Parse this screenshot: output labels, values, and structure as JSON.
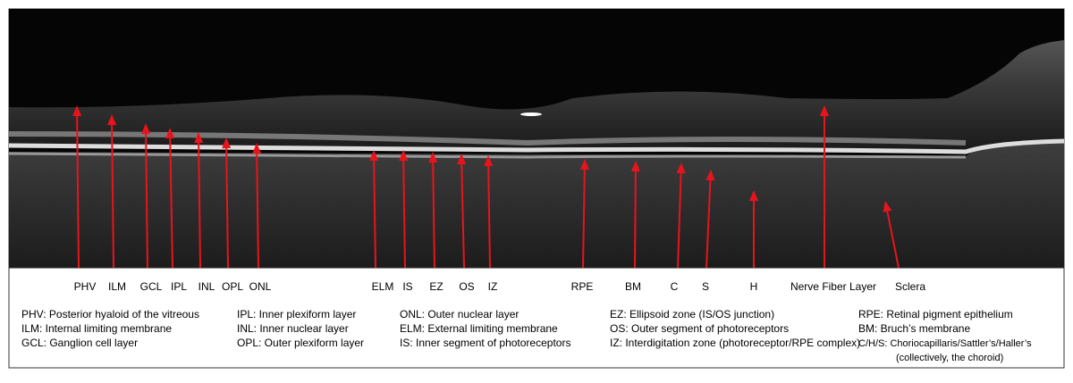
{
  "labels": [
    "PHV",
    "ILM",
    "GCL",
    "IPL",
    "INL",
    "OPL",
    "ONL",
    "ELM",
    "IS",
    "EZ",
    "OS",
    "IZ",
    "RPE",
    "BM",
    "C",
    "S",
    "H",
    "Nerve Fiber Layer",
    "Sclera"
  ],
  "legend": [
    [
      "PHV: Posterior hyaloid of the vitreous",
      "ILM: Internal limiting membrane",
      "GCL: Ganglion cell layer"
    ],
    [
      "IPL: Inner plexiform layer",
      "INL: Inner nuclear layer",
      "OPL: Outer plexiform layer"
    ],
    [
      "ONL: Outer nuclear layer",
      "ELM: External limiting membrane",
      "IS: Inner segment of photoreceptors"
    ],
    [
      "EZ: Ellipsoid zone (IS/OS junction)",
      "OS: Outer segment of photoreceptors",
      "IZ: Interdigitation zone (photoreceptor/RPE complex)"
    ],
    [
      "RPE: Retinal pigment epithelium",
      "BM: Bruch’s membrane",
      "C/H/S: Choriocapillaris/Sattler’s/Haller’s",
      "(collectively, the choroid)"
    ]
  ]
}
